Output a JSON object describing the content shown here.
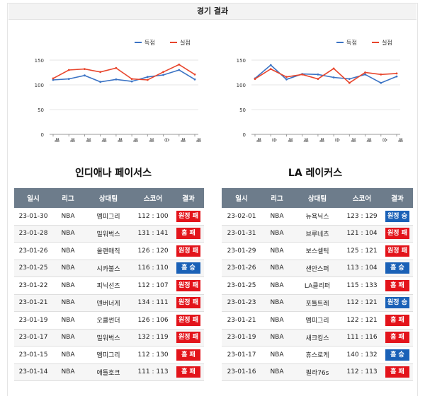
{
  "header": {
    "title": "경기 결과"
  },
  "table_columns": [
    "일시",
    "리그",
    "상대팀",
    "스코어",
    "결과"
  ],
  "legend": {
    "score": "득점",
    "allowed": "실점"
  },
  "colors": {
    "score": "#3b73c4",
    "allowed": "#e8452c",
    "win": "#1a61b7",
    "loss": "#e3141b",
    "table_header": "#6d7c8b"
  },
  "teams": [
    {
      "name": "인디애나 페이서스",
      "games": [
        {
          "date": "23-01-30",
          "league": "NBA",
          "opponent": "멤피그리",
          "score": "112 : 100",
          "result": "원정 패",
          "outcome": "loss"
        },
        {
          "date": "23-01-28",
          "league": "NBA",
          "opponent": "밀워벅스",
          "score": "131 : 141",
          "result": "홈 패",
          "outcome": "loss"
        },
        {
          "date": "23-01-26",
          "league": "NBA",
          "opponent": "올랜매직",
          "score": "126 : 120",
          "result": "원정 패",
          "outcome": "loss"
        },
        {
          "date": "23-01-25",
          "league": "NBA",
          "opponent": "시카불스",
          "score": "116 : 110",
          "result": "홈 승",
          "outcome": "win"
        },
        {
          "date": "23-01-22",
          "league": "NBA",
          "opponent": "피닉선즈",
          "score": "112 : 107",
          "result": "원정 패",
          "outcome": "loss"
        },
        {
          "date": "23-01-21",
          "league": "NBA",
          "opponent": "덴버너게",
          "score": "134 : 111",
          "result": "원정 패",
          "outcome": "loss"
        },
        {
          "date": "23-01-19",
          "league": "NBA",
          "opponent": "오클썬더",
          "score": "126 : 106",
          "result": "원정 패",
          "outcome": "loss"
        },
        {
          "date": "23-01-17",
          "league": "NBA",
          "opponent": "밀워벅스",
          "score": "132 : 119",
          "result": "원정 패",
          "outcome": "loss"
        },
        {
          "date": "23-01-15",
          "league": "NBA",
          "opponent": "멤피그리",
          "score": "112 : 130",
          "result": "홈 패",
          "outcome": "loss"
        },
        {
          "date": "23-01-14",
          "league": "NBA",
          "opponent": "애틀호크",
          "score": "111 : 113",
          "result": "홈 패",
          "outcome": "loss"
        }
      ]
    },
    {
      "name": "LA 레이커스",
      "games": [
        {
          "date": "23-02-01",
          "league": "NBA",
          "opponent": "뉴욕닉스",
          "score": "123 : 129",
          "result": "원정 승",
          "outcome": "win"
        },
        {
          "date": "23-01-31",
          "league": "NBA",
          "opponent": "브루네츠",
          "score": "121 : 104",
          "result": "원정 패",
          "outcome": "loss"
        },
        {
          "date": "23-01-29",
          "league": "NBA",
          "opponent": "보스셀틱",
          "score": "125 : 121",
          "result": "원정 패",
          "outcome": "loss"
        },
        {
          "date": "23-01-26",
          "league": "NBA",
          "opponent": "샌안스퍼",
          "score": "113 : 104",
          "result": "홈 승",
          "outcome": "win"
        },
        {
          "date": "23-01-25",
          "league": "NBA",
          "opponent": "LA클리퍼",
          "score": "115 : 133",
          "result": "홈 패",
          "outcome": "loss"
        },
        {
          "date": "23-01-23",
          "league": "NBA",
          "opponent": "포틀트레",
          "score": "112 : 121",
          "result": "원정 승",
          "outcome": "win"
        },
        {
          "date": "23-01-21",
          "league": "NBA",
          "opponent": "멤피그리",
          "score": "122 : 121",
          "result": "홈 패",
          "outcome": "loss"
        },
        {
          "date": "23-01-19",
          "league": "NBA",
          "opponent": "새크킹스",
          "score": "111 : 116",
          "result": "홈 패",
          "outcome": "loss"
        },
        {
          "date": "23-01-17",
          "league": "NBA",
          "opponent": "휴스로케",
          "score": "140 : 132",
          "result": "홈 승",
          "outcome": "win"
        },
        {
          "date": "23-01-16",
          "league": "NBA",
          "opponent": "필라76s",
          "score": "112 : 113",
          "result": "홈 패",
          "outcome": "loss"
        }
      ]
    }
  ],
  "chart_data": [
    {
      "type": "line",
      "categories": [
        "패",
        "패",
        "패",
        "패",
        "패",
        "패",
        "패",
        "승",
        "패",
        "패"
      ],
      "series": [
        {
          "name": "득점",
          "values": [
            110,
            112,
            119,
            106,
            111,
            107,
            116,
            120,
            130,
            111
          ]
        },
        {
          "name": "실점",
          "values": [
            113,
            130,
            132,
            126,
            134,
            112,
            110,
            126,
            141,
            121
          ]
        }
      ],
      "yticks": [
        0,
        50,
        100,
        150
      ],
      "ylim": [
        0,
        150
      ],
      "legend": "top-right"
    },
    {
      "type": "line",
      "categories": [
        "패",
        "승",
        "패",
        "패",
        "패",
        "승",
        "패",
        "패",
        "승",
        "패"
      ],
      "series": [
        {
          "name": "득점",
          "values": [
            113,
            140,
            111,
            122,
            121,
            115,
            112,
            121,
            104,
            117
          ]
        },
        {
          "name": "실점",
          "values": [
            112,
            132,
            116,
            121,
            112,
            133,
            104,
            125,
            121,
            123
          ]
        }
      ],
      "yticks": [
        0,
        50,
        100,
        150
      ],
      "ylim": [
        0,
        150
      ],
      "legend": "top-right"
    }
  ]
}
